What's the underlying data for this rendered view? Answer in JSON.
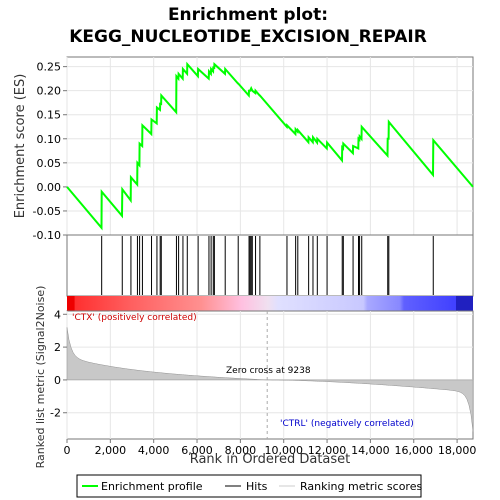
{
  "title_line1": "Enrichment plot:",
  "title_line2": "KEGG_NUCLEOTIDE_EXCISION_REPAIR",
  "es_ylabel": "Enrichment score (ES)",
  "metric_ylabel": "Ranked list metric (Signal2Noise)",
  "xlabel": "Rank in Ordered Dataset",
  "pos_label": "'CTX' (positively correlated)",
  "neg_label": "'CTRL' (negatively correlated)",
  "zero_cross_label": "Zero cross at 9238",
  "legend": {
    "profile": "Enrichment profile",
    "hits": "Hits",
    "metric": "Ranking metric scores"
  },
  "colors": {
    "profile": "#00ff00",
    "pos_label": "#cc0000",
    "neg_label": "#0000cc"
  },
  "chart_data": {
    "type": "line",
    "x_range": [
      0,
      18734
    ],
    "xticks": [
      0,
      2000,
      4000,
      6000,
      8000,
      10000,
      12000,
      14000,
      16000,
      18000
    ],
    "xtick_labels": [
      "0",
      "2,000",
      "4,000",
      "6,000",
      "8,000",
      "10,000",
      "12,000",
      "14,000",
      "16,000",
      "18,000"
    ],
    "es_ylim": [
      -0.1,
      0.27
    ],
    "es_yticks": [
      -0.1,
      -0.05,
      0.0,
      0.05,
      0.1,
      0.15,
      0.2,
      0.25
    ],
    "es_ytick_labels": [
      "-0.10",
      "-0.05",
      "0.00",
      "0.05",
      "0.10",
      "0.15",
      "0.20",
      "0.25"
    ],
    "metric_ylim": [
      -3.6,
      4.2
    ],
    "metric_yticks": [
      4,
      2,
      0,
      -2
    ],
    "metric_ytick_labels": [
      "4",
      "2",
      "0",
      "-2"
    ],
    "zero_cross": 9238,
    "hits": [
      1600,
      2550,
      2950,
      3250,
      3350,
      3480,
      3900,
      4150,
      4300,
      4350,
      5050,
      5150,
      5350,
      5550,
      6050,
      6550,
      6650,
      6750,
      6800,
      7300,
      7900,
      8400,
      8450,
      8500,
      8550,
      8700,
      8900,
      10150,
      10550,
      10650,
      11150,
      11350,
      11550,
      12000,
      12700,
      12750,
      13200,
      13450,
      13500,
      13600,
      14800,
      14850,
      16900
    ],
    "es_profile": [
      [
        0,
        0.0
      ],
      [
        1590,
        -0.085
      ],
      [
        1600,
        -0.01
      ],
      [
        2540,
        -0.06
      ],
      [
        2550,
        -0.005
      ],
      [
        2940,
        -0.028
      ],
      [
        2950,
        0.02
      ],
      [
        3240,
        0.005
      ],
      [
        3250,
        0.05
      ],
      [
        3340,
        0.045
      ],
      [
        3350,
        0.09
      ],
      [
        3470,
        0.085
      ],
      [
        3480,
        0.128
      ],
      [
        3890,
        0.11
      ],
      [
        3900,
        0.14
      ],
      [
        4140,
        0.132
      ],
      [
        4150,
        0.165
      ],
      [
        4290,
        0.16
      ],
      [
        4300,
        0.175
      ],
      [
        4340,
        0.17
      ],
      [
        4350,
        0.19
      ],
      [
        5040,
        0.155
      ],
      [
        5050,
        0.23
      ],
      [
        5140,
        0.225
      ],
      [
        5150,
        0.235
      ],
      [
        5340,
        0.225
      ],
      [
        5350,
        0.245
      ],
      [
        5540,
        0.235
      ],
      [
        5550,
        0.255
      ],
      [
        6040,
        0.23
      ],
      [
        6050,
        0.245
      ],
      [
        6540,
        0.225
      ],
      [
        6550,
        0.24
      ],
      [
        6640,
        0.235
      ],
      [
        6650,
        0.245
      ],
      [
        6740,
        0.24
      ],
      [
        6750,
        0.25
      ],
      [
        6790,
        0.245
      ],
      [
        6800,
        0.255
      ],
      [
        7290,
        0.235
      ],
      [
        7300,
        0.245
      ],
      [
        7890,
        0.215
      ],
      [
        7900,
        0.215
      ],
      [
        8390,
        0.19
      ],
      [
        8400,
        0.2
      ],
      [
        8450,
        0.2
      ],
      [
        8500,
        0.205
      ],
      [
        8550,
        0.2
      ],
      [
        8690,
        0.195
      ],
      [
        8700,
        0.2
      ],
      [
        8890,
        0.19
      ],
      [
        8900,
        0.19
      ],
      [
        10140,
        0.125
      ],
      [
        10150,
        0.128
      ],
      [
        10540,
        0.11
      ],
      [
        10550,
        0.12
      ],
      [
        10640,
        0.115
      ],
      [
        10650,
        0.118
      ],
      [
        11140,
        0.093
      ],
      [
        11150,
        0.103
      ],
      [
        11340,
        0.093
      ],
      [
        11350,
        0.103
      ],
      [
        11540,
        0.092
      ],
      [
        11550,
        0.1
      ],
      [
        11990,
        0.08
      ],
      [
        12000,
        0.092
      ],
      [
        12690,
        0.055
      ],
      [
        12700,
        0.082
      ],
      [
        12740,
        0.08
      ],
      [
        12750,
        0.09
      ],
      [
        13190,
        0.07
      ],
      [
        13200,
        0.085
      ],
      [
        13440,
        0.08
      ],
      [
        13450,
        0.1
      ],
      [
        13490,
        0.098
      ],
      [
        13500,
        0.105
      ],
      [
        13590,
        0.1
      ],
      [
        13600,
        0.125
      ],
      [
        14790,
        0.065
      ],
      [
        14800,
        0.1
      ],
      [
        14840,
        0.1
      ],
      [
        14850,
        0.135
      ],
      [
        16890,
        0.025
      ],
      [
        16900,
        0.097
      ],
      [
        18734,
        0.0
      ]
    ]
  }
}
